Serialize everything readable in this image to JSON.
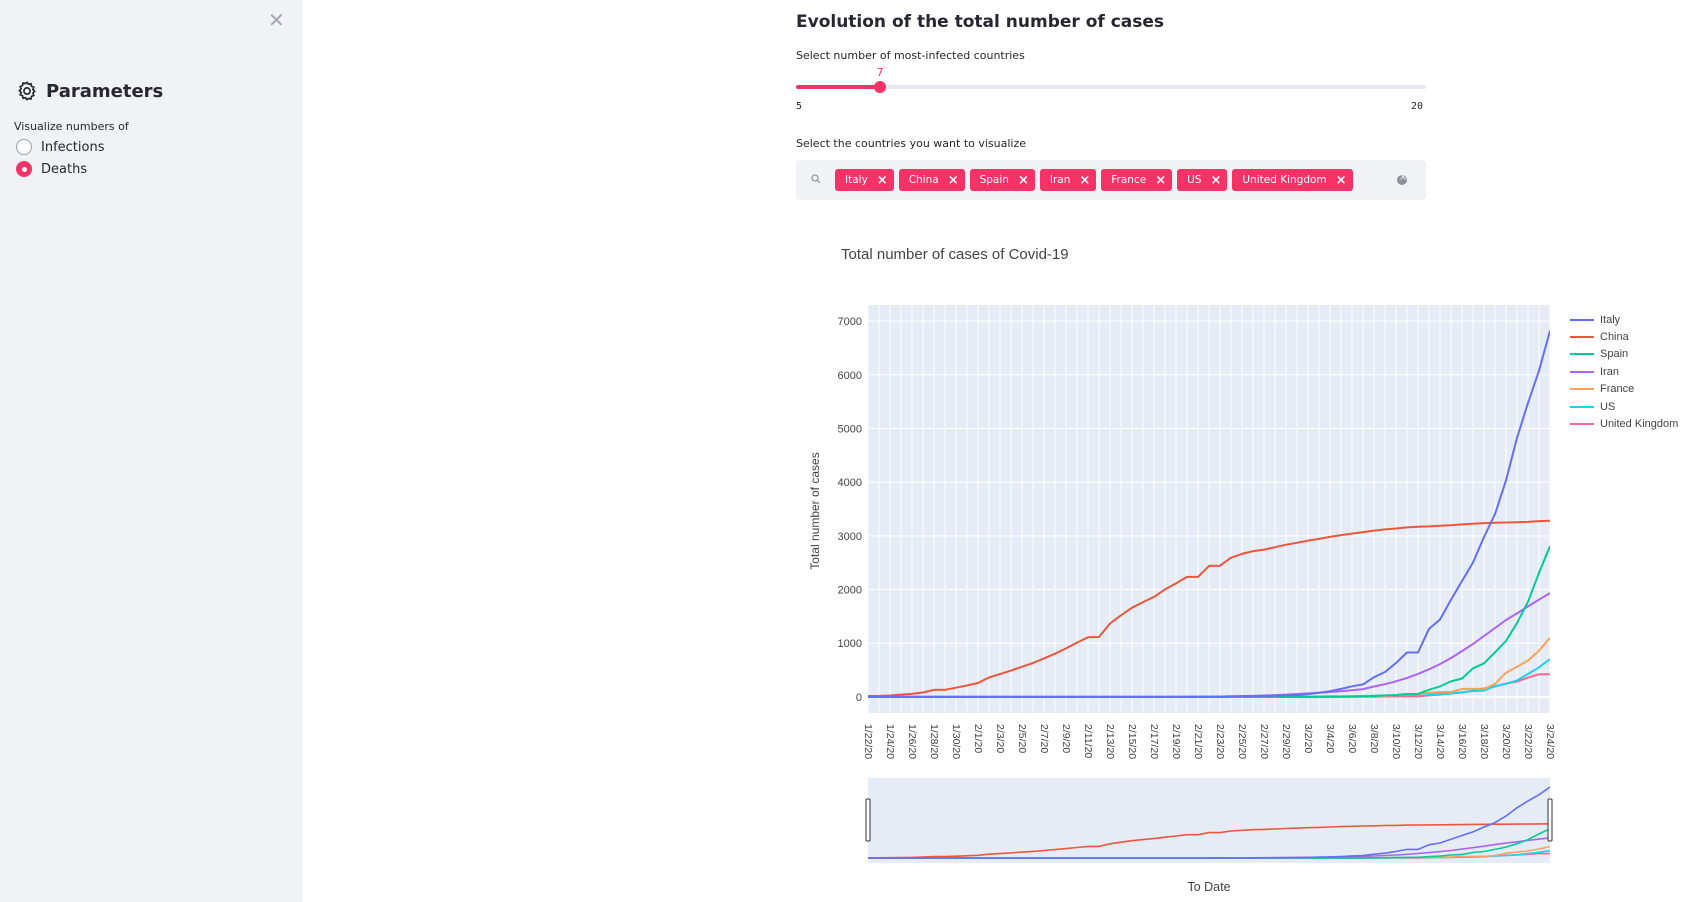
{
  "sidebar": {
    "close_glyph": "✕",
    "title": "Parameters",
    "title_icon": "gear-icon",
    "radio_label": "Visualize numbers of",
    "options": [
      "Infections",
      "Deaths"
    ],
    "selected_index": 1
  },
  "main": {
    "title": "Evolution of the total number of cases",
    "slider": {
      "label": "Select number of most-infected countries",
      "min": 5,
      "max": 20,
      "value": 7,
      "min_label": "5",
      "max_label": "20",
      "value_label": "7"
    },
    "multiselect": {
      "label": "Select the countries you want to visualize",
      "tags": [
        "Italy",
        "China",
        "Spain",
        "Iran",
        "France",
        "US",
        "United Kingdom"
      ],
      "search_icon": "search-icon",
      "clear_icon": "clear-all-icon"
    }
  },
  "accent_color": "#f63366",
  "chart_data": {
    "type": "line",
    "title": "Total number of cases of Covid-19",
    "xlabel": "To Date",
    "ylabel": "Total number of cases",
    "x": [
      "1/22/20",
      "1/23/20",
      "1/24/20",
      "1/25/20",
      "1/26/20",
      "1/27/20",
      "1/28/20",
      "1/29/20",
      "1/30/20",
      "1/31/20",
      "2/1/20",
      "2/2/20",
      "2/3/20",
      "2/4/20",
      "2/5/20",
      "2/6/20",
      "2/7/20",
      "2/8/20",
      "2/9/20",
      "2/10/20",
      "2/11/20",
      "2/12/20",
      "2/13/20",
      "2/14/20",
      "2/15/20",
      "2/16/20",
      "2/17/20",
      "2/18/20",
      "2/19/20",
      "2/20/20",
      "2/21/20",
      "2/22/20",
      "2/23/20",
      "2/24/20",
      "2/25/20",
      "2/26/20",
      "2/27/20",
      "2/28/20",
      "2/29/20",
      "3/1/20",
      "3/2/20",
      "3/3/20",
      "3/4/20",
      "3/5/20",
      "3/6/20",
      "3/7/20",
      "3/8/20",
      "3/9/20",
      "3/10/20",
      "3/11/20",
      "3/12/20",
      "3/13/20",
      "3/14/20",
      "3/15/20",
      "3/16/20",
      "3/17/20",
      "3/18/20",
      "3/19/20",
      "3/20/20",
      "3/21/20",
      "3/22/20",
      "3/23/20",
      "3/24/20"
    ],
    "x_tick_labels": [
      "1/22/20",
      "1/24/20",
      "1/26/20",
      "1/28/20",
      "1/30/20",
      "2/1/20",
      "2/3/20",
      "2/5/20",
      "2/7/20",
      "2/9/20",
      "2/11/20",
      "2/13/20",
      "2/15/20",
      "2/17/20",
      "2/19/20",
      "2/21/20",
      "2/23/20",
      "2/25/20",
      "2/27/20",
      "2/29/20",
      "3/2/20",
      "3/4/20",
      "3/6/20",
      "3/8/20",
      "3/10/20",
      "3/12/20",
      "3/14/20",
      "3/16/20",
      "3/18/20",
      "3/20/20",
      "3/22/20",
      "3/24/20"
    ],
    "y_ticks": [
      0,
      1000,
      2000,
      3000,
      4000,
      5000,
      6000,
      7000
    ],
    "ylim": [
      -300,
      7300
    ],
    "grid": true,
    "legend_position": "right",
    "rangeslider": true,
    "series": [
      {
        "name": "Italy",
        "color": "#636efa",
        "values": [
          0,
          0,
          0,
          0,
          0,
          0,
          0,
          0,
          0,
          0,
          0,
          0,
          0,
          0,
          0,
          0,
          0,
          0,
          0,
          0,
          0,
          0,
          0,
          0,
          0,
          0,
          0,
          0,
          0,
          0,
          1,
          2,
          3,
          7,
          10,
          12,
          17,
          21,
          29,
          34,
          52,
          79,
          107,
          148,
          197,
          233,
          366,
          463,
          631,
          827,
          827,
          1266,
          1441,
          1809,
          2158,
          2503,
          2978,
          3405,
          4032,
          4825,
          5476,
          6077,
          6820
        ]
      },
      {
        "name": "China",
        "color": "#ef553b",
        "values": [
          17,
          18,
          26,
          42,
          56,
          82,
          131,
          133,
          171,
          213,
          259,
          361,
          425,
          490,
          562,
          632,
          717,
          804,
          904,
          1011,
          1111,
          1116,
          1368,
          1520,
          1662,
          1765,
          1863,
          2002,
          2114,
          2236,
          2236,
          2441,
          2443,
          2593,
          2663,
          2715,
          2744,
          2788,
          2835,
          2870,
          2912,
          2943,
          2981,
          3013,
          3042,
          3070,
          3097,
          3120,
          3136,
          3158,
          3169,
          3176,
          3189,
          3199,
          3213,
          3226,
          3237,
          3245,
          3249,
          3253,
          3259,
          3274,
          3281
        ]
      },
      {
        "name": "Spain",
        "color": "#00cc96",
        "values": [
          0,
          0,
          0,
          0,
          0,
          0,
          0,
          0,
          0,
          0,
          0,
          0,
          0,
          0,
          0,
          0,
          0,
          0,
          0,
          0,
          0,
          0,
          0,
          0,
          0,
          0,
          0,
          0,
          0,
          0,
          0,
          0,
          0,
          0,
          0,
          0,
          0,
          0,
          0,
          0,
          0,
          1,
          2,
          3,
          5,
          10,
          17,
          28,
          35,
          54,
          55,
          133,
          195,
          289,
          342,
          533,
          623,
          830,
          1043,
          1375,
          1772,
          2311,
          2808
        ]
      },
      {
        "name": "Iran",
        "color": "#ab63fa",
        "values": [
          0,
          0,
          0,
          0,
          0,
          0,
          0,
          0,
          0,
          0,
          0,
          0,
          0,
          0,
          0,
          0,
          0,
          0,
          0,
          0,
          0,
          0,
          0,
          0,
          0,
          0,
          0,
          0,
          0,
          2,
          4,
          5,
          8,
          12,
          16,
          19,
          26,
          34,
          43,
          54,
          66,
          77,
          92,
          107,
          124,
          145,
          194,
          237,
          291,
          354,
          429,
          514,
          611,
          724,
          853,
          988,
          1135,
          1284,
          1433,
          1556,
          1685,
          1812,
          1934
        ]
      },
      {
        "name": "France",
        "color": "#ffa15a",
        "values": [
          0,
          0,
          0,
          0,
          0,
          0,
          0,
          0,
          0,
          0,
          0,
          0,
          0,
          0,
          0,
          0,
          0,
          0,
          0,
          0,
          0,
          0,
          1,
          1,
          1,
          1,
          1,
          1,
          1,
          1,
          1,
          1,
          1,
          1,
          2,
          2,
          2,
          2,
          2,
          3,
          4,
          4,
          4,
          6,
          9,
          11,
          19,
          19,
          33,
          48,
          48,
          79,
          91,
          91,
          149,
          149,
          149,
          244,
          451,
          563,
          676,
          862,
          1102
        ]
      },
      {
        "name": "US",
        "color": "#19d3f3",
        "values": [
          0,
          0,
          0,
          0,
          0,
          0,
          0,
          0,
          0,
          0,
          0,
          0,
          0,
          0,
          0,
          0,
          0,
          0,
          0,
          0,
          0,
          0,
          0,
          0,
          0,
          0,
          0,
          0,
          0,
          0,
          0,
          0,
          0,
          0,
          0,
          0,
          0,
          0,
          1,
          1,
          6,
          7,
          11,
          12,
          14,
          17,
          21,
          22,
          28,
          36,
          40,
          47,
          54,
          63,
          85,
          108,
          118,
          200,
          244,
          307,
          427,
          552,
          706
        ]
      },
      {
        "name": "United Kingdom",
        "color": "#ff6692",
        "values": [
          0,
          0,
          0,
          0,
          0,
          0,
          0,
          0,
          0,
          0,
          0,
          0,
          0,
          0,
          0,
          0,
          0,
          0,
          0,
          0,
          0,
          0,
          0,
          0,
          0,
          0,
          0,
          0,
          0,
          0,
          0,
          0,
          0,
          0,
          0,
          0,
          0,
          0,
          0,
          0,
          0,
          0,
          0,
          1,
          2,
          2,
          3,
          7,
          7,
          9,
          10,
          28,
          43,
          65,
          81,
          115,
          158,
          194,
          250,
          285,
          359,
          423,
          423
        ]
      }
    ]
  }
}
